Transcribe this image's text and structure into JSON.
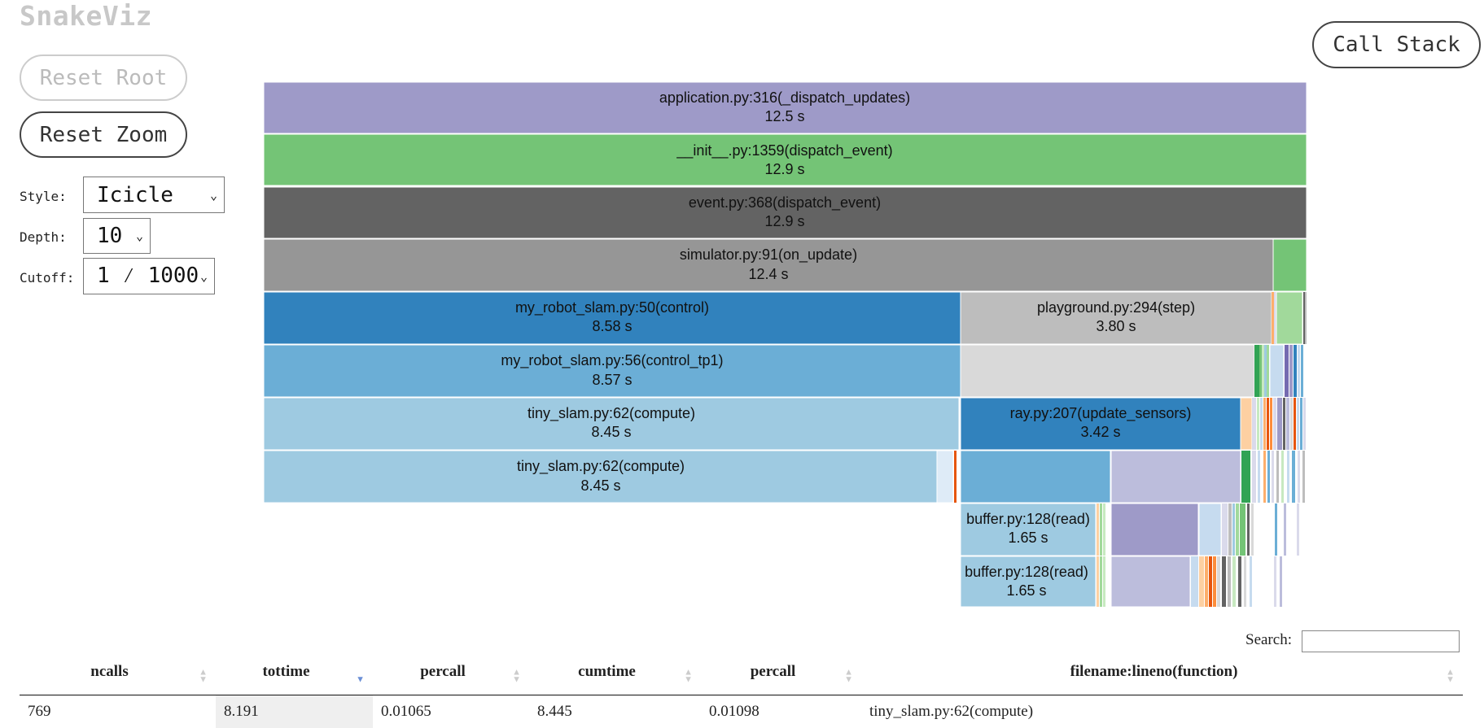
{
  "app": {
    "title": "SnakeViz"
  },
  "buttons": {
    "reset_root": "Reset Root",
    "reset_zoom": "Reset Zoom",
    "call_stack": "Call Stack"
  },
  "controls": {
    "style": {
      "label": "Style:",
      "value": "Icicle"
    },
    "depth": {
      "label": "Depth:",
      "value": "10"
    },
    "cutoff": {
      "label": "Cutoff:",
      "value": "1 ⁄ 1000"
    }
  },
  "icicle": {
    "blocks": [
      {
        "label": "application.py:316(_dispatch_updates)",
        "time": "12.5 s",
        "color": "#9e9ac8"
      },
      {
        "label": "__init__.py:1359(dispatch_event)",
        "time": "12.9 s",
        "color": "#74c476"
      },
      {
        "label": "event.py:368(dispatch_event)",
        "time": "12.9 s",
        "color": "#636363"
      },
      {
        "label": "simulator.py:91(on_update)",
        "time": "12.4 s",
        "color": "#969696"
      },
      {
        "label": "my_robot_slam.py:50(control)",
        "time": "8.58 s",
        "color": "#3182bd"
      },
      {
        "label": "playground.py:294(step)",
        "time": "3.80 s",
        "color": "#bdbdbd"
      },
      {
        "label": "my_robot_slam.py:56(control_tp1)",
        "time": "8.57 s",
        "color": "#6baed6"
      },
      {
        "label": "tiny_slam.py:62(compute)",
        "time": "8.45 s",
        "color": "#9ecae1"
      },
      {
        "label": "ray.py:207(update_sensors)",
        "time": "3.42 s",
        "color": "#3182bd"
      },
      {
        "label": "tiny_slam.py:62(compute)",
        "time": "8.45 s",
        "color": "#9ecae1"
      },
      {
        "label": "buffer.py:128(read)",
        "time": "1.65 s",
        "color": "#9ecae1"
      },
      {
        "label": "buffer.py:128(read)",
        "time": "1.65 s",
        "color": "#9ecae1"
      }
    ]
  },
  "search": {
    "label": "Search:",
    "value": ""
  },
  "table": {
    "columns": [
      "ncalls",
      "tottime",
      "percall",
      "cumtime",
      "percall",
      "filename:lineno(function)"
    ],
    "sorted_column": "tottime",
    "rows": [
      [
        "769",
        "8.191",
        "0.01065",
        "8.445",
        "0.01098",
        "tiny_slam.py:62(compute)"
      ]
    ]
  }
}
